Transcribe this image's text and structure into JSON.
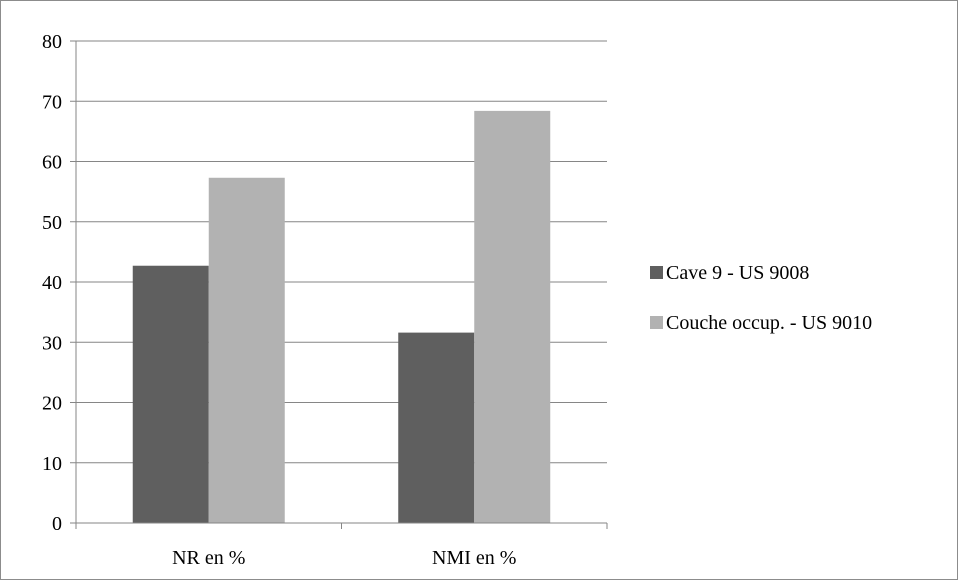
{
  "chart_data": {
    "type": "bar",
    "title": "",
    "xlabel": "",
    "ylabel": "",
    "categories": [
      "NR en %",
      "NMI en %"
    ],
    "series": [
      {
        "name": "Cave 9 - US 9008",
        "values": [
          42.7,
          31.6
        ],
        "color": "#5f5f5f"
      },
      {
        "name": "Couche occup. - US 9010",
        "values": [
          57.3,
          68.4
        ],
        "color": "#b2b2b2"
      }
    ],
    "ylim": [
      0,
      80
    ],
    "yticks": [
      0,
      10,
      20,
      30,
      40,
      50,
      60,
      70,
      80
    ],
    "grid": true,
    "legend_position": "right"
  }
}
